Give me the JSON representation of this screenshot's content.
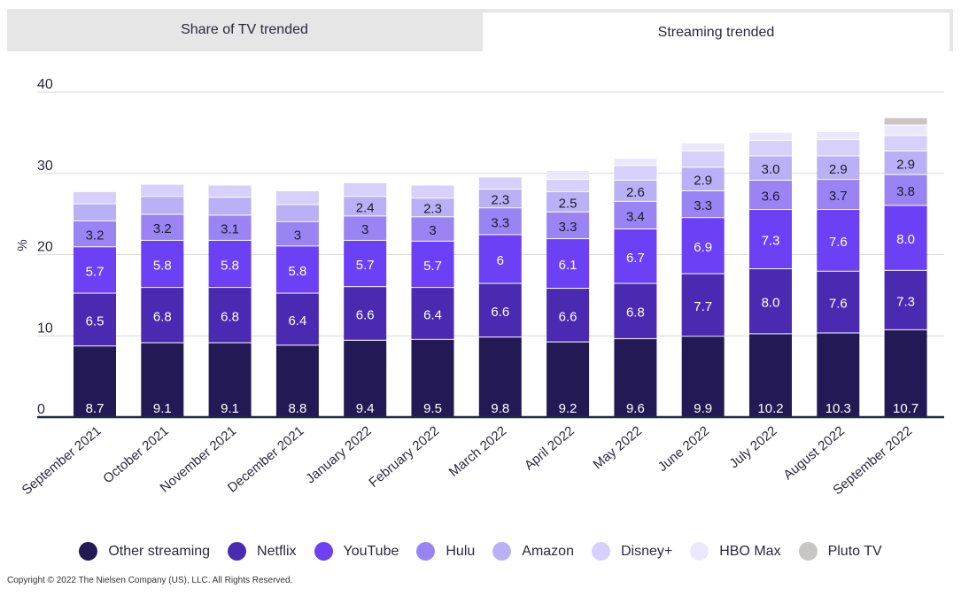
{
  "tabs": [
    {
      "label": "Share of TV trended"
    },
    {
      "label": "Streaming trended"
    }
  ],
  "copyright": "Copyright © 2022 The Nielsen Company (US), LLC. All Rights Reserved.",
  "chart_data": {
    "type": "bar",
    "stacked": true,
    "ylabel": "%",
    "ylim": [
      0,
      40
    ],
    "yticks": [
      0,
      10,
      20,
      30,
      40
    ],
    "grid": true,
    "legend_position": "bottom",
    "categories": [
      "September 2021",
      "October 2021",
      "November 2021",
      "December 2021",
      "January 2022",
      "February 2022",
      "March 2022",
      "April 2022",
      "May 2022",
      "June 2022",
      "July 2022",
      "August 2022",
      "September 2022"
    ],
    "series": [
      {
        "name": "Other streaming",
        "color": "#231a55",
        "label_color": "#ffffff",
        "values": [
          8.7,
          9.1,
          9.1,
          8.8,
          9.4,
          9.5,
          9.8,
          9.2,
          9.6,
          9.9,
          10.2,
          10.3,
          10.7
        ],
        "labels": [
          "8.7",
          "9.1",
          "9.1",
          "8.8",
          "9.4",
          "9.5",
          "9.8",
          "9.2",
          "9.6",
          "9.9",
          "10.2",
          "10.3",
          "10.7"
        ]
      },
      {
        "name": "Netflix",
        "color": "#4a2ab0",
        "label_color": "#ffffff",
        "values": [
          6.5,
          6.8,
          6.8,
          6.4,
          6.6,
          6.4,
          6.6,
          6.6,
          6.8,
          7.7,
          8.0,
          7.6,
          7.3
        ],
        "labels": [
          "6.5",
          "6.8",
          "6.8",
          "6.4",
          "6.6",
          "6.4",
          "6.6",
          "6.6",
          "6.8",
          "7.7",
          "8.0",
          "7.6",
          "7.3"
        ]
      },
      {
        "name": "YouTube",
        "color": "#6c40f5",
        "label_color": "#ffffff",
        "values": [
          5.7,
          5.8,
          5.8,
          5.8,
          5.7,
          5.7,
          6,
          6.1,
          6.7,
          6.9,
          7.3,
          7.6,
          8.0
        ],
        "labels": [
          "5.7",
          "5.8",
          "5.8",
          "5.8",
          "5.7",
          "5.7",
          "6",
          "6.1",
          "6.7",
          "6.9",
          "7.3",
          "7.6",
          "8.0"
        ]
      },
      {
        "name": "Hulu",
        "color": "#9a84f3",
        "label_color": "#1a1a2e",
        "values": [
          3.2,
          3.2,
          3.1,
          3,
          3,
          3,
          3.3,
          3.3,
          3.4,
          3.3,
          3.6,
          3.7,
          3.8
        ],
        "labels": [
          "3.2",
          "3.2",
          "3.1",
          "3",
          "3",
          "3",
          "3.3",
          "3.3",
          "3.4",
          "3.3",
          "3.6",
          "3.7",
          "3.8"
        ]
      },
      {
        "name": "Amazon",
        "color": "#bab0f6",
        "label_color": "#1a1a2e",
        "values": [
          2.1,
          2.2,
          2.2,
          2.1,
          2.4,
          2.3,
          2.3,
          2.5,
          2.6,
          2.9,
          3.0,
          2.9,
          2.9
        ],
        "labels": [
          "",
          "",
          "",
          "",
          "2.4",
          "2.3",
          "2.3",
          "2.5",
          "2.6",
          "2.9",
          "3.0",
          "2.9",
          "2.9"
        ]
      },
      {
        "name": "Disney+",
        "color": "#d6d0fa",
        "label_color": "#1a1a2e",
        "values": [
          1.5,
          1.5,
          1.5,
          1.7,
          1.7,
          1.6,
          1.5,
          1.5,
          1.8,
          2.0,
          1.9,
          2.0,
          1.9
        ],
        "labels": [
          "",
          "",
          "",
          "",
          "",
          "",
          "",
          "",
          "",
          "",
          "",
          "",
          ""
        ]
      },
      {
        "name": "HBO Max",
        "color": "#ebe8fd",
        "label_color": "#1a1a2e",
        "values": [
          0.0,
          0.0,
          0.0,
          0.0,
          0.0,
          0.0,
          0.0,
          1.1,
          0.9,
          1.0,
          1.0,
          1.0,
          1.3
        ],
        "labels": [
          "",
          "",
          "",
          "",
          "",
          "",
          "",
          "",
          "",
          "",
          "",
          "",
          ""
        ]
      },
      {
        "name": "Pluto TV",
        "color": "#c8c5c3",
        "label_color": "#1a1a2e",
        "values": [
          0,
          0,
          0,
          0,
          0,
          0,
          0,
          0,
          0,
          0,
          0,
          0,
          0.9
        ],
        "labels": [
          "",
          "",
          "",
          "",
          "",
          "",
          "",
          "",
          "",
          "",
          "",
          "",
          ""
        ]
      }
    ]
  }
}
